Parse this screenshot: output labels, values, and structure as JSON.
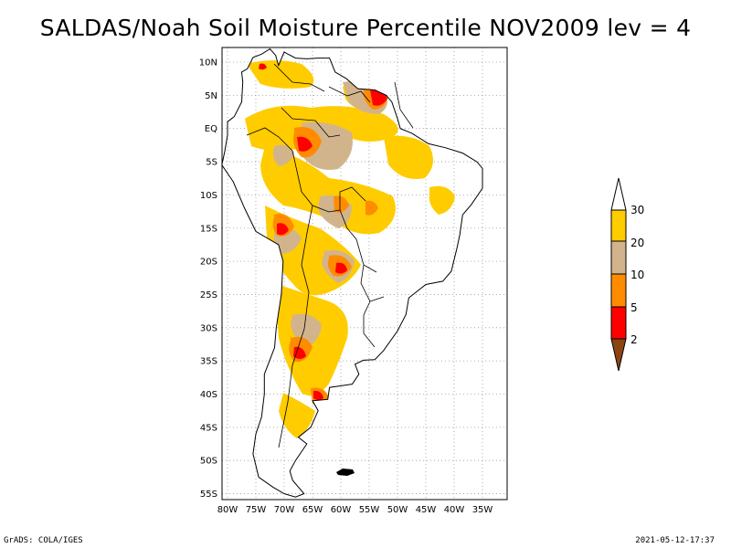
{
  "title": "SALDAS/Noah Soil Moisture Percentile NOV2009 lev = 4",
  "map": {
    "lat_labels": [
      "10N",
      "5N",
      "EQ",
      "5S",
      "10S",
      "15S",
      "20S",
      "25S",
      "30S",
      "35S",
      "40S",
      "45S",
      "50S",
      "55S"
    ],
    "lon_labels": [
      "80W",
      "75W",
      "70W",
      "65W",
      "60W",
      "55W",
      "50W",
      "45W",
      "40W",
      "35W"
    ]
  },
  "colorbar": {
    "labels": [
      "30",
      "20",
      "10",
      "5",
      "2"
    ],
    "colors": {
      "above30": "#ffffff",
      "c20_30": "#ffcc00",
      "c10_20": "#d2b48c",
      "c5_10": "#ff8c00",
      "c2_5": "#ff0000",
      "below2": "#8b4513"
    }
  },
  "footer": {
    "left": "GrADS: COLA/IGES",
    "right": "2021-05-12-17:37"
  }
}
